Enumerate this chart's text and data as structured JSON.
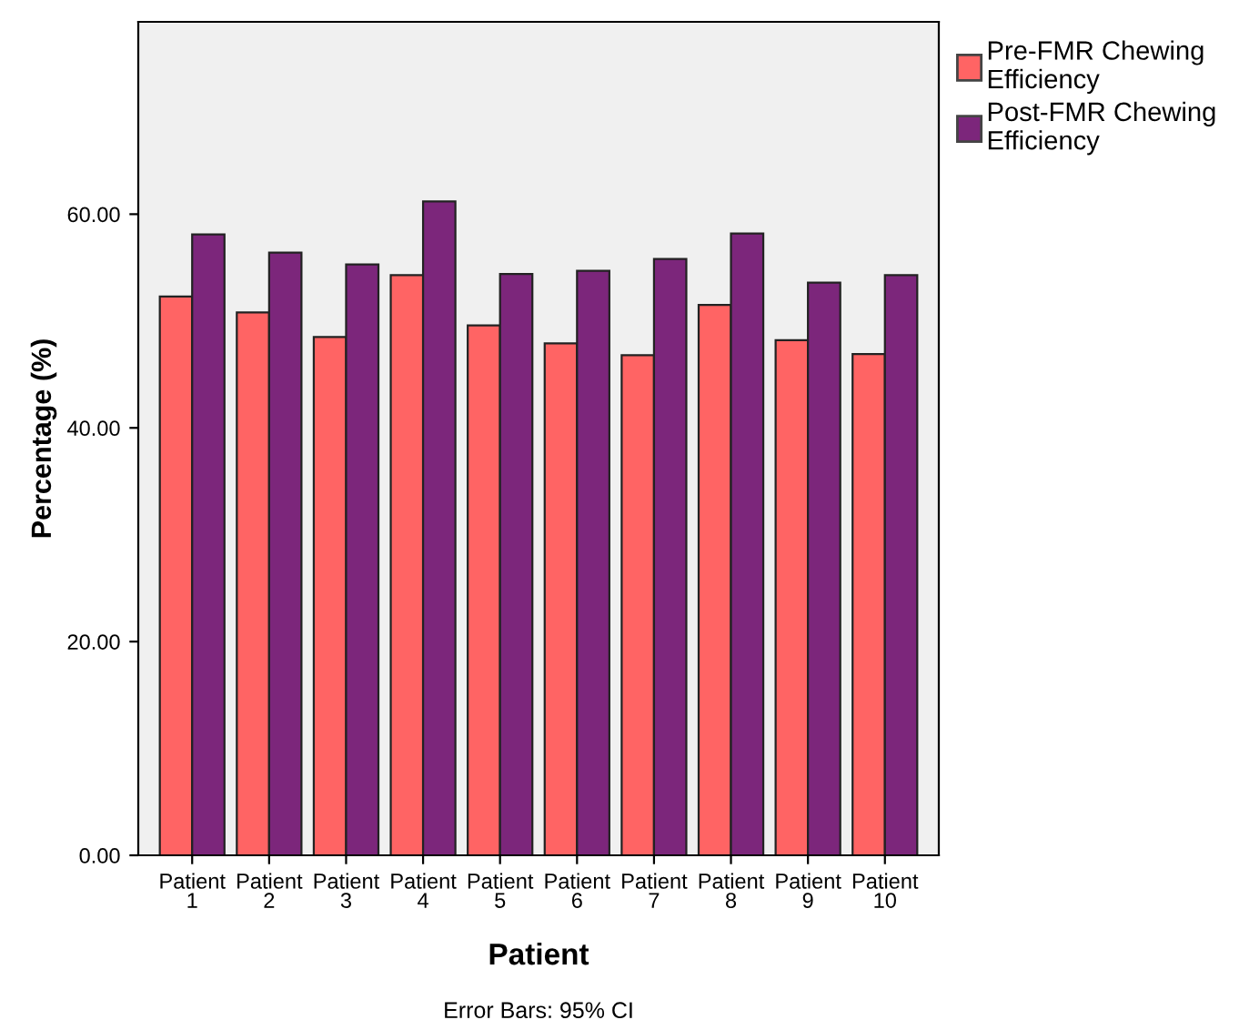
{
  "chart_data": {
    "type": "bar",
    "xlabel": "Patient",
    "ylabel": "Percentage (%)",
    "categories": [
      "Patient\n1",
      "Patient\n2",
      "Patient\n3",
      "Patient\n4",
      "Patient\n5",
      "Patient\n6",
      "Patient\n7",
      "Patient\n8",
      "Patient\n9",
      "Patient\n10"
    ],
    "series": [
      {
        "name": "Pre-FMR Chewing\nEfficiency",
        "color": "#ff6464",
        "values": [
          52.3,
          50.8,
          48.5,
          54.3,
          49.6,
          47.9,
          46.8,
          51.5,
          48.2,
          46.9
        ]
      },
      {
        "name": "Post-FMR Chewing\nEfficiency",
        "color": "#7c267b",
        "values": [
          58.1,
          56.4,
          55.3,
          61.2,
          54.4,
          54.7,
          55.8,
          58.2,
          53.6,
          54.3
        ]
      }
    ],
    "ylim": [
      0,
      78
    ],
    "yticks": [
      {
        "value": 0,
        "label": "0.00"
      },
      {
        "value": 20,
        "label": "20.00"
      },
      {
        "value": 40,
        "label": "40.00"
      },
      {
        "value": 60,
        "label": "60.00"
      }
    ],
    "grid": false,
    "legend": "top right",
    "annotations": [
      "Error Bars: 95% CI"
    ]
  }
}
